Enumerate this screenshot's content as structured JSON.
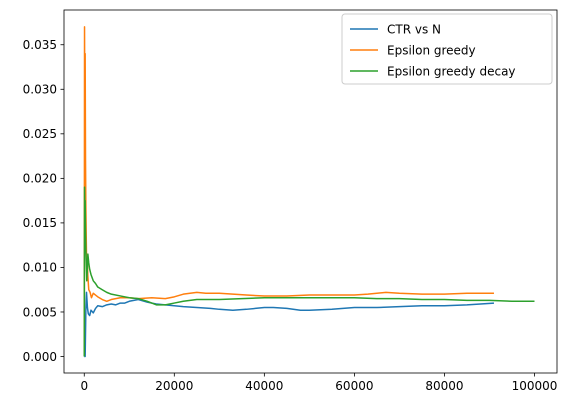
{
  "chart_data": {
    "type": "line",
    "title": "",
    "xlabel": "",
    "ylabel": "",
    "xlim": [
      -4500,
      105000
    ],
    "ylim": [
      -0.00185,
      0.0389
    ],
    "x_ticks": [
      0,
      20000,
      40000,
      60000,
      80000,
      100000
    ],
    "x_tick_labels": [
      "0",
      "20000",
      "40000",
      "60000",
      "80000",
      "100000"
    ],
    "y_ticks": [
      0.0,
      0.005,
      0.01,
      0.015,
      0.02,
      0.025,
      0.03,
      0.035
    ],
    "y_tick_labels": [
      "0.000",
      "0.005",
      "0.010",
      "0.015",
      "0.020",
      "0.025",
      "0.030",
      "0.035"
    ],
    "grid": false,
    "legend_position": "top-right",
    "series": [
      {
        "name": "CTR vs N",
        "color": "#1f77b4",
        "x": [
          0,
          80,
          200,
          350,
          500,
          700,
          900,
          1200,
          1500,
          2000,
          2500,
          3000,
          4000,
          5000,
          6000,
          7000,
          8000,
          9000,
          10000,
          12000,
          14000,
          16000,
          18000,
          20000,
          22000,
          25000,
          28000,
          30000,
          33000,
          36000,
          40000,
          42000,
          45000,
          48000,
          50000,
          55000,
          60000,
          65000,
          70000,
          75000,
          80000,
          85000,
          88000,
          91000
        ],
        "y": [
          0.0,
          0.0,
          0.0,
          0.0052,
          0.0072,
          0.0055,
          0.0048,
          0.0046,
          0.0052,
          0.0049,
          0.0054,
          0.0057,
          0.0056,
          0.0058,
          0.0059,
          0.0058,
          0.006,
          0.006,
          0.0062,
          0.0064,
          0.0061,
          0.0059,
          0.0058,
          0.0057,
          0.0056,
          0.0055,
          0.0054,
          0.0053,
          0.0052,
          0.0053,
          0.0055,
          0.0055,
          0.0054,
          0.0052,
          0.0052,
          0.0053,
          0.0055,
          0.0055,
          0.0056,
          0.0057,
          0.0057,
          0.0058,
          0.0059,
          0.006
        ]
      },
      {
        "name": "Epsilon greedy",
        "color": "#ff7f0e",
        "x": [
          0,
          60,
          120,
          200,
          280,
          350,
          450,
          550,
          650,
          800,
          1000,
          1300,
          1600,
          2000,
          2500,
          3000,
          4000,
          5000,
          6000,
          8000,
          10000,
          12000,
          15000,
          18000,
          20000,
          22000,
          25000,
          27000,
          30000,
          33000,
          36000,
          40000,
          45000,
          50000,
          55000,
          60000,
          63000,
          67000,
          70000,
          75000,
          80000,
          85000,
          91000
        ],
        "y": [
          0.0,
          0.037,
          0.028,
          0.034,
          0.022,
          0.017,
          0.013,
          0.0095,
          0.011,
          0.009,
          0.0075,
          0.0072,
          0.0066,
          0.0071,
          0.0069,
          0.0067,
          0.0064,
          0.0062,
          0.0064,
          0.0066,
          0.0066,
          0.0065,
          0.0066,
          0.0065,
          0.0067,
          0.007,
          0.0072,
          0.0071,
          0.0071,
          0.007,
          0.0069,
          0.0068,
          0.0068,
          0.0069,
          0.0069,
          0.0069,
          0.007,
          0.0072,
          0.0071,
          0.007,
          0.007,
          0.0071,
          0.0071
        ]
      },
      {
        "name": "Epsilon greedy decay",
        "color": "#2ca02c",
        "x": [
          0,
          60,
          120,
          200,
          280,
          350,
          450,
          550,
          650,
          800,
          1000,
          1200,
          1500,
          2000,
          2500,
          3000,
          4000,
          5000,
          6000,
          8000,
          10000,
          12000,
          14000,
          16000,
          18000,
          20000,
          22000,
          25000,
          28000,
          30000,
          35000,
          40000,
          45000,
          50000,
          55000,
          60000,
          65000,
          70000,
          75000,
          80000,
          85000,
          90000,
          95000,
          100000
        ],
        "y": [
          0.0,
          0.019,
          0.016,
          0.0175,
          0.014,
          0.012,
          0.0105,
          0.0085,
          0.0095,
          0.0115,
          0.0105,
          0.0098,
          0.0092,
          0.0085,
          0.0082,
          0.0078,
          0.0075,
          0.0072,
          0.007,
          0.0068,
          0.0066,
          0.0065,
          0.0062,
          0.0058,
          0.0058,
          0.006,
          0.0062,
          0.0064,
          0.0064,
          0.0064,
          0.0065,
          0.0066,
          0.0066,
          0.0066,
          0.0066,
          0.0066,
          0.0065,
          0.0065,
          0.0064,
          0.0064,
          0.0063,
          0.0063,
          0.0062,
          0.0062
        ]
      }
    ]
  }
}
